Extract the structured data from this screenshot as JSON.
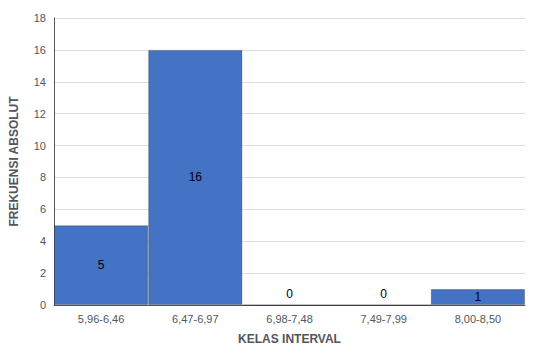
{
  "chart_data": {
    "type": "bar",
    "categories": [
      "5,96-6,46",
      "6,47-6,97",
      "6,98-7,48",
      "7,49-7,99",
      "8,00-8,50"
    ],
    "values": [
      5,
      16,
      0,
      0,
      1
    ],
    "color": "#4472C4",
    "xlabel": "KELAS INTERVAL",
    "ylabel": "FREKUENSI ABSOLUT",
    "ylim": [
      0,
      18
    ],
    "yticks": [
      0,
      2,
      4,
      6,
      8,
      10,
      12,
      14,
      16,
      18
    ],
    "grid": true,
    "data_labels": true
  }
}
